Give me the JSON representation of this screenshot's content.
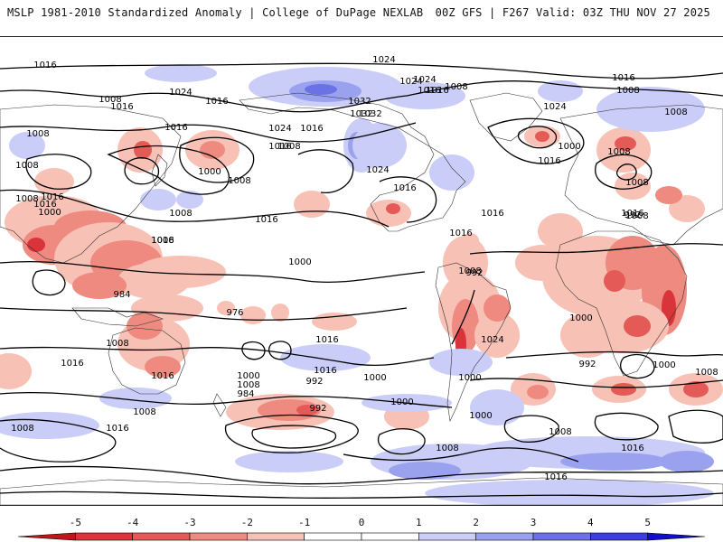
{
  "header": {
    "left_title": "MSLP 1981-2010 Standardized Anomaly | College of DuPage NEXLAB",
    "right_title": "00Z GFS | F267 Valid: 03Z THU NOV 27 2025"
  },
  "colors": {
    "neg5": "#c0151b",
    "neg4": "#d8343a",
    "neg3": "#e45a56",
    "neg2": "#ef8a80",
    "neg1": "#f8c1b6",
    "zero": "#ffffff",
    "pos1": "#c9cdf7",
    "pos2": "#9aa2f0",
    "pos3": "#6a72e6",
    "pos4": "#3a3fdc",
    "pos5": "#1010cc"
  },
  "colorbar": {
    "ticks": [
      "-5",
      "-4",
      "-3",
      "-2",
      "-1",
      "0",
      "1",
      "2",
      "3",
      "4",
      "5"
    ]
  },
  "isobar_labels": [
    "1016",
    "1024",
    "1008",
    "1016",
    "1016",
    "1008",
    "1016",
    "1024",
    "1024",
    "1016",
    "1008",
    "1016",
    "1000",
    "1008",
    "1024",
    "1032",
    "1024",
    "1016",
    "1032",
    "1016",
    "1032",
    "1024",
    "1016",
    "1000",
    "1008",
    "1016",
    "1016",
    "1008",
    "1024",
    "1008",
    "1008",
    "1016",
    "1008",
    "1008",
    "1000",
    "1016",
    "1008",
    "1016",
    "1016",
    "1008",
    "1016",
    "1008",
    "1016",
    "1008",
    "1016",
    "1000",
    "984",
    "976",
    "992",
    "1008",
    "992",
    "1024",
    "1000",
    "1016",
    "1008",
    "1016",
    "1016",
    "1000",
    "992",
    "1000",
    "1016",
    "992",
    "1000",
    "1008",
    "1008",
    "984",
    "992",
    "1000",
    "1000",
    "1008",
    "1016",
    "1008",
    "1008",
    "1000",
    "1008",
    "1016",
    "1016"
  ]
}
